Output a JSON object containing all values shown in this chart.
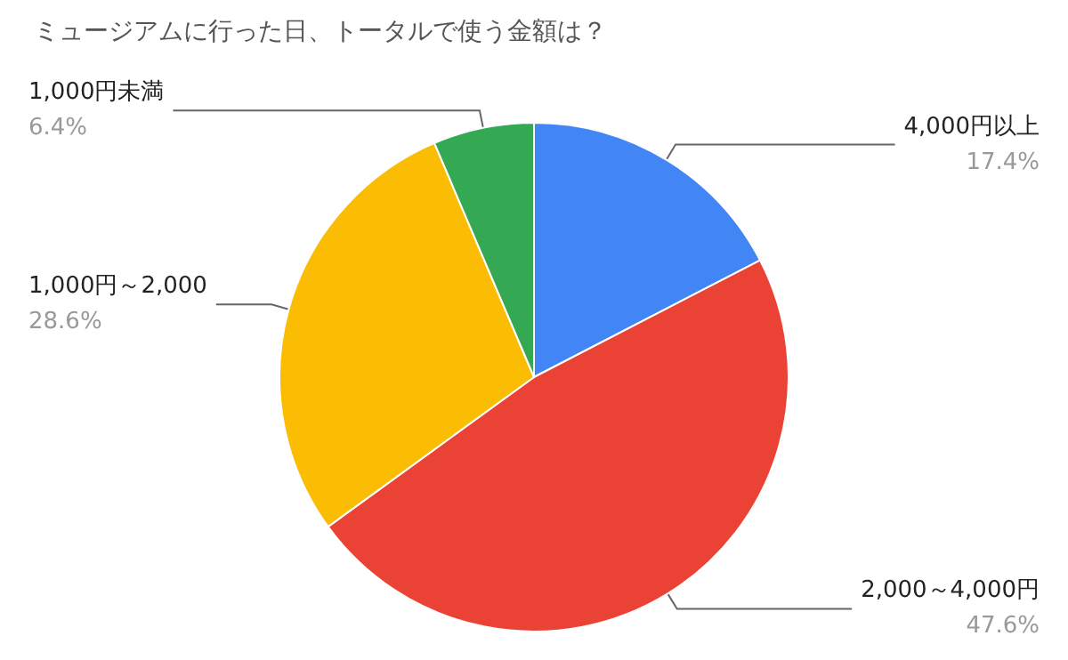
{
  "chart_data": {
    "type": "pie",
    "title": "ミュージアムに行った日、トータルで使う金額は？",
    "categories": [
      "4,000円以上",
      "2,000～4,000円",
      "1,000円～2,000",
      "1,000円未満"
    ],
    "values": [
      17.4,
      47.6,
      28.6,
      6.4
    ],
    "value_labels": [
      "17.4%",
      "47.6%",
      "28.6%",
      "6.4%"
    ],
    "colors": [
      "#4285f4",
      "#ea4335",
      "#fbbc04",
      "#34a853"
    ],
    "legend": false
  }
}
